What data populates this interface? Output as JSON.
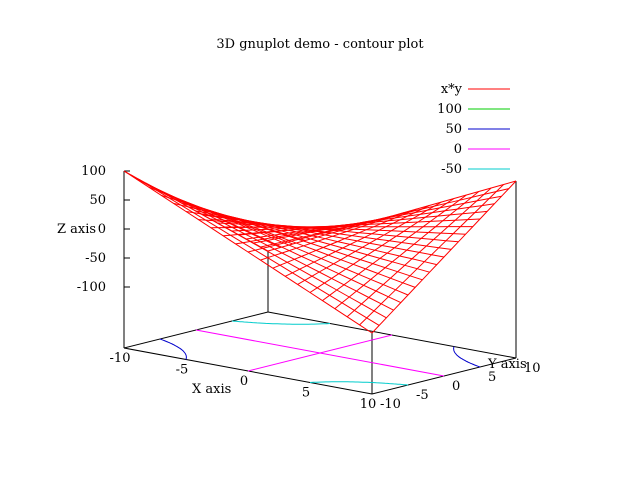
{
  "chart_data": {
    "type": "surface",
    "title": "3D gnuplot demo - contour plot",
    "function": "x*y",
    "xlabel": "X axis",
    "ylabel": "Y axis",
    "zlabel": "Z axis",
    "xlim": [
      -10,
      10
    ],
    "ylim": [
      -10,
      10
    ],
    "zlim": [
      -100,
      100
    ],
    "x_ticks": [
      "-10",
      "-5",
      "0",
      "5",
      "10"
    ],
    "y_ticks": [
      "-10",
      "-5",
      "0",
      "5",
      "10"
    ],
    "z_ticks": [
      "100",
      "50",
      "0",
      "-50",
      "-100"
    ],
    "grid_samples": 21,
    "surface_color": "#ff0000",
    "legend_position": "top-right",
    "series": [
      {
        "name": "x*y",
        "color": "#ff0000",
        "kind": "surface"
      },
      {
        "name": "100",
        "color": "#00cc00",
        "kind": "contour",
        "level": 100
      },
      {
        "name": "50",
        "color": "#0000cc",
        "kind": "contour",
        "level": 50
      },
      {
        "name": "0",
        "color": "#ff00ff",
        "kind": "contour",
        "level": 0
      },
      {
        "name": "-50",
        "color": "#00cccc",
        "kind": "contour",
        "level": -50
      }
    ]
  }
}
